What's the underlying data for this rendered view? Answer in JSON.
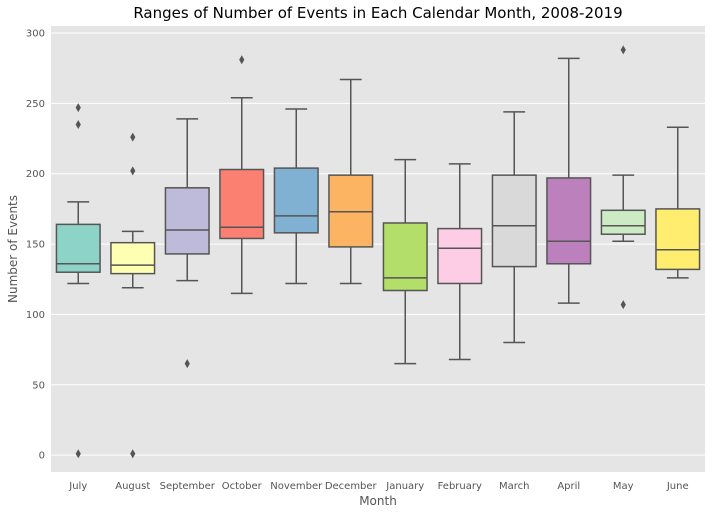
{
  "chart_data": {
    "type": "box",
    "title": "Ranges of Number of Events in Each Calendar Month, 2008-2019",
    "xlabel": "Month",
    "ylabel": "Number of Events",
    "ylim": [
      -12,
      305
    ],
    "yticks": [
      0,
      50,
      100,
      150,
      200,
      250,
      300
    ],
    "grid": true,
    "categories": [
      "July",
      "August",
      "September",
      "October",
      "November",
      "December",
      "January",
      "February",
      "March",
      "April",
      "May",
      "June"
    ],
    "series": [
      {
        "category": "July",
        "whisker_low": 122,
        "q1": 130,
        "median": 136,
        "q3": 164,
        "whisker_high": 180,
        "outliers": [
          1,
          235,
          247
        ],
        "color": "#8dd3c7"
      },
      {
        "category": "August",
        "whisker_low": 119,
        "q1": 129,
        "median": 135,
        "q3": 151,
        "whisker_high": 159,
        "outliers": [
          1,
          202,
          226
        ],
        "color": "#ffffb3"
      },
      {
        "category": "September",
        "whisker_low": 124,
        "q1": 143,
        "median": 160,
        "q3": 190,
        "whisker_high": 239,
        "outliers": [
          65
        ],
        "color": "#bebada"
      },
      {
        "category": "October",
        "whisker_low": 115,
        "q1": 154,
        "median": 162,
        "q3": 203,
        "whisker_high": 254,
        "outliers": [
          281
        ],
        "color": "#fb8072"
      },
      {
        "category": "November",
        "whisker_low": 122,
        "q1": 158,
        "median": 170,
        "q3": 204,
        "whisker_high": 246,
        "outliers": [],
        "color": "#80b1d3"
      },
      {
        "category": "December",
        "whisker_low": 122,
        "q1": 148,
        "median": 173,
        "q3": 199,
        "whisker_high": 267,
        "outliers": [],
        "color": "#fdb462"
      },
      {
        "category": "January",
        "whisker_low": 65,
        "q1": 117,
        "median": 126,
        "q3": 165,
        "whisker_high": 210,
        "outliers": [],
        "color": "#b3de69"
      },
      {
        "category": "February",
        "whisker_low": 68,
        "q1": 122,
        "median": 147,
        "q3": 161,
        "whisker_high": 207,
        "outliers": [],
        "color": "#fccde5"
      },
      {
        "category": "March",
        "whisker_low": 80,
        "q1": 134,
        "median": 163,
        "q3": 199,
        "whisker_high": 244,
        "outliers": [],
        "color": "#d9d9d9"
      },
      {
        "category": "April",
        "whisker_low": 108,
        "q1": 136,
        "median": 152,
        "q3": 197,
        "whisker_high": 282,
        "outliers": [],
        "color": "#bc80bd"
      },
      {
        "category": "May",
        "whisker_low": 152,
        "q1": 157,
        "median": 163,
        "q3": 174,
        "whisker_high": 199,
        "outliers": [
          107,
          288
        ],
        "color": "#ccebc5"
      },
      {
        "category": "June",
        "whisker_low": 126,
        "q1": 132,
        "median": 146,
        "q3": 175,
        "whisker_high": 233,
        "outliers": [],
        "color": "#ffed6f"
      }
    ],
    "colors": {
      "plot_background": "#e5e5e5",
      "grid": "#ffffff",
      "box_edge": "#555555"
    }
  }
}
